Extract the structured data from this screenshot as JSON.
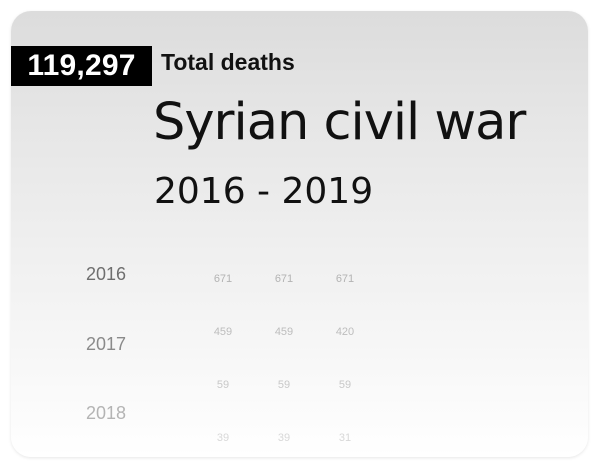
{
  "total": {
    "value": "119,297",
    "label": "Total deaths"
  },
  "title": "Syrian civil war",
  "subtitle": "2016 - 2019",
  "years": [
    "2016",
    "2017",
    "2018"
  ],
  "rows": [
    [
      "671",
      "671",
      "671"
    ],
    [
      "459",
      "459",
      "420"
    ],
    [
      "59",
      "59",
      "59"
    ],
    [
      "39",
      "39",
      "31"
    ]
  ]
}
